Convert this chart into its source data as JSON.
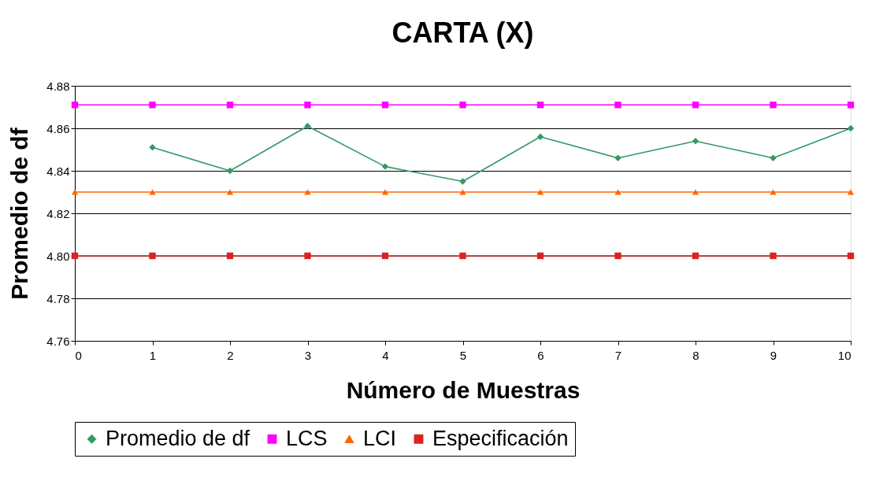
{
  "chart_data": {
    "type": "line",
    "title": "CARTA (X)",
    "xlabel": "Número de Muestras",
    "ylabel": "Promedio de df",
    "x": [
      0,
      1,
      2,
      3,
      4,
      5,
      6,
      7,
      8,
      9,
      10
    ],
    "series": [
      {
        "name": "Promedio de df",
        "color": "#339966",
        "marker": "diamond",
        "x": [
          1,
          2,
          3,
          4,
          5,
          6,
          7,
          8,
          9,
          10
        ],
        "values": [
          4.851,
          4.84,
          4.861,
          4.842,
          4.835,
          4.856,
          4.846,
          4.854,
          4.846,
          4.86
        ]
      },
      {
        "name": "LCS",
        "color": "#ff00ff",
        "marker": "square",
        "values": [
          4.871,
          4.871,
          4.871,
          4.871,
          4.871,
          4.871,
          4.871,
          4.871,
          4.871,
          4.871,
          4.871
        ]
      },
      {
        "name": "LCI",
        "color": "#ff6600",
        "marker": "triangle",
        "values": [
          4.83,
          4.83,
          4.83,
          4.83,
          4.83,
          4.83,
          4.83,
          4.83,
          4.83,
          4.83,
          4.83
        ]
      },
      {
        "name": "Especificación",
        "color": "#dd2222",
        "marker": "square",
        "values": [
          4.8,
          4.8,
          4.8,
          4.8,
          4.8,
          4.8,
          4.8,
          4.8,
          4.8,
          4.8,
          4.8
        ]
      }
    ],
    "xlim": [
      0,
      10
    ],
    "xticks": [
      0,
      1,
      2,
      3,
      4,
      5,
      6,
      7,
      8,
      9,
      10
    ],
    "ylim": [
      4.76,
      4.88
    ],
    "yticks": [
      {
        "value": 4.76,
        "label": "4.76"
      },
      {
        "value": 4.78,
        "label": "4.78"
      },
      {
        "value": 4.8,
        "label": "4.80"
      },
      {
        "value": 4.82,
        "label": "4.82"
      },
      {
        "value": 4.84,
        "label": "4.84"
      },
      {
        "value": 4.86,
        "label": "4.86"
      },
      {
        "value": 4.88,
        "label": "4.88"
      }
    ],
    "grid": "y",
    "legend": "bottom",
    "line_style": "solid"
  }
}
